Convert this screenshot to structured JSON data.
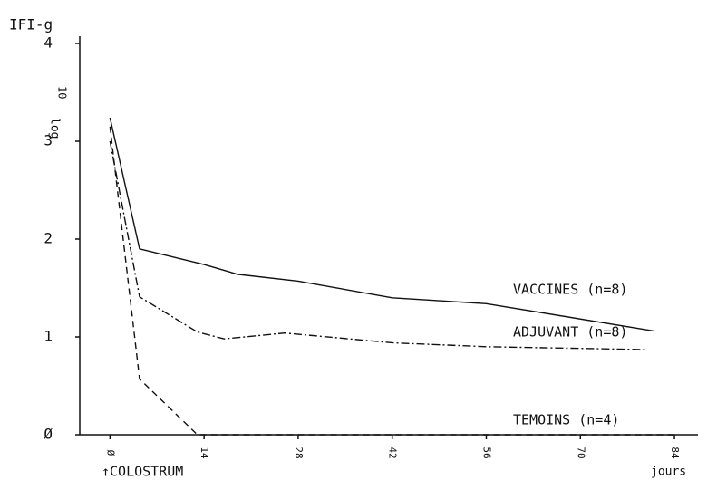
{
  "chart_data": {
    "type": "line",
    "y_label": "IFI-g",
    "y_sublabel": "log",
    "y_subscript": "10",
    "x_label": "jours",
    "annotation": "↑COLOSTRUM",
    "xlim": [
      -4.5,
      87.5
    ],
    "ylim": [
      0,
      4
    ],
    "xticks": [
      {
        "value": 0,
        "label": "Ø"
      },
      14,
      28,
      42,
      56,
      70,
      84
    ],
    "yticks": [
      {
        "value": 0,
        "label": "Ø"
      },
      1,
      2,
      3,
      4
    ],
    "series": [
      {
        "name": "VACCINES (n=8)",
        "color": "#111111",
        "dash": "solid",
        "x": [
          0,
          4.4,
          14,
          19,
          28,
          42,
          56,
          81
        ],
        "values": [
          3.24,
          1.9,
          1.74,
          1.64,
          1.57,
          1.4,
          1.34,
          1.06
        ]
      },
      {
        "name": "ADJUVANT (n=8)",
        "color": "#111111",
        "dash": "dashdot",
        "x": [
          0,
          4.4,
          13,
          17,
          26,
          42,
          56,
          80
        ],
        "values": [
          3.0,
          1.41,
          1.05,
          0.98,
          1.04,
          0.94,
          0.9,
          0.87
        ]
      },
      {
        "name": "TEMOINS (n=4)",
        "color": "#111111",
        "dash": "dashed",
        "x": [
          0,
          4.4,
          13,
          84
        ],
        "values": [
          3.15,
          0.57,
          0,
          0
        ]
      }
    ]
  }
}
